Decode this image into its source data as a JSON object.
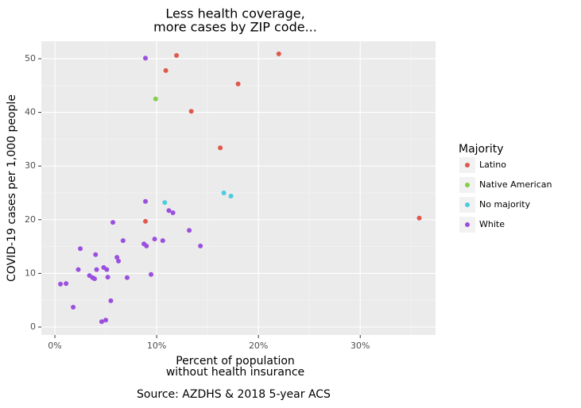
{
  "chart_data": {
    "type": "scatter",
    "title": [
      "Less health coverage,",
      "more cases by ZIP code..."
    ],
    "x_label": [
      "Percent of population",
      "without health insurance"
    ],
    "y_label": "COVID-19 cases per 1,000 people",
    "caption": "Source: AZDHS & 2018 5-year ACS",
    "legend_title": "Majority",
    "grid": true,
    "xlim": [
      -1.33,
      37.4
    ],
    "ylim": [
      -1.48,
      53.25
    ],
    "xticks": [
      {
        "value": 0,
        "label": "0%"
      },
      {
        "value": 10,
        "label": "10%"
      },
      {
        "value": 20,
        "label": "20%"
      },
      {
        "value": 30,
        "label": "30%"
      }
    ],
    "yticks": [
      0,
      10,
      20,
      30,
      40,
      50
    ],
    "series": [
      {
        "name": "Latino",
        "color": "#e0584c",
        "x": [
          11.95,
          22.0,
          10.9,
          18.0,
          13.4,
          16.25,
          8.9,
          35.8
        ],
        "values": [
          50.6,
          50.9,
          47.8,
          45.3,
          40.2,
          33.4,
          19.7,
          20.3
        ]
      },
      {
        "name": "Native American",
        "color": "#84cf48",
        "x": [
          9.9
        ],
        "values": [
          42.5
        ]
      },
      {
        "name": "No majority",
        "color": "#4ccddf",
        "x": [
          10.8,
          16.6,
          17.3
        ],
        "values": [
          23.2,
          25.0,
          24.4
        ]
      },
      {
        "name": "White",
        "color": "#9b4fdf",
        "x": [
          8.9,
          8.9,
          5.7,
          11.2,
          11.6,
          13.2,
          2.5,
          6.7,
          9.8,
          10.6,
          8.75,
          9.0,
          14.3,
          4.0,
          6.1,
          6.25,
          2.3,
          4.1,
          4.8,
          5.1,
          3.4,
          3.7,
          3.9,
          5.2,
          7.1,
          9.45,
          0.55,
          1.1,
          5.5,
          1.8,
          5.0,
          4.6
        ],
        "values": [
          50.1,
          23.4,
          19.5,
          21.7,
          21.3,
          18.0,
          14.6,
          16.1,
          16.4,
          16.1,
          15.5,
          15.1,
          15.1,
          13.5,
          13.0,
          12.3,
          10.7,
          10.7,
          11.1,
          10.7,
          9.6,
          9.2,
          9.0,
          9.3,
          9.2,
          9.8,
          8.0,
          8.1,
          4.9,
          3.7,
          1.3,
          1.0
        ]
      }
    ]
  }
}
